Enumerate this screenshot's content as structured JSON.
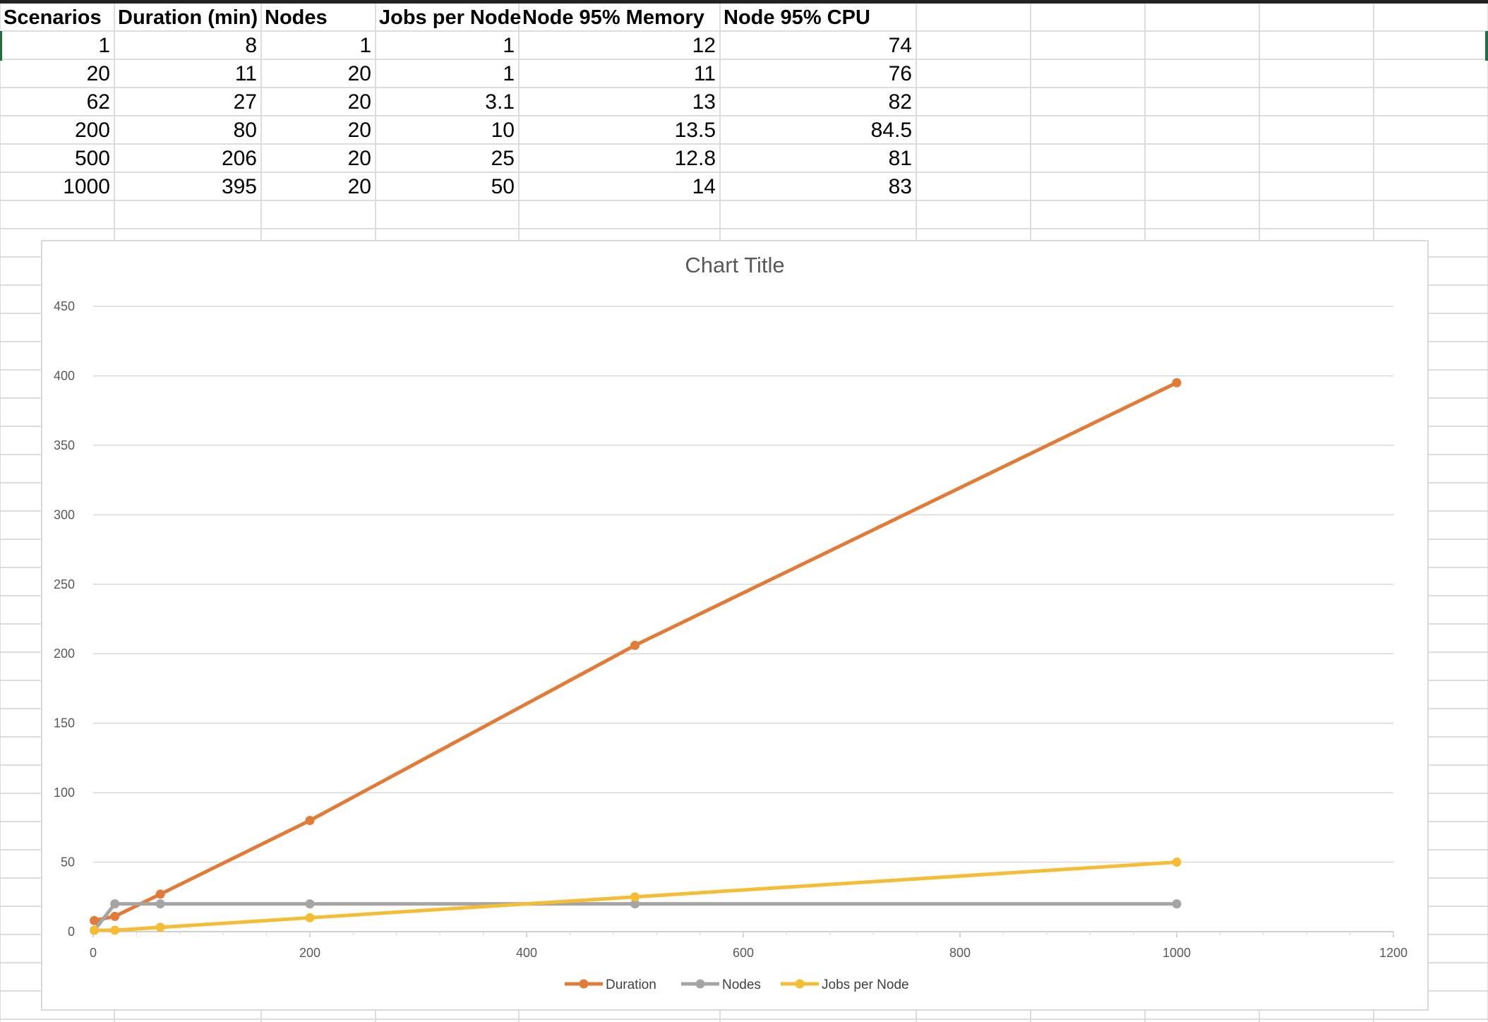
{
  "table": {
    "headers": [
      "Scenarios",
      "Duration (min)",
      "Nodes",
      "Jobs per Node",
      "Node 95% Memory",
      "Node 95% CPU"
    ],
    "rows": [
      [
        "1",
        "8",
        "1",
        "1",
        "12",
        "74"
      ],
      [
        "20",
        "11",
        "20",
        "1",
        "11",
        "76"
      ],
      [
        "62",
        "27",
        "20",
        "3.1",
        "13",
        "82"
      ],
      [
        "200",
        "80",
        "20",
        "10",
        "13.5",
        "84.5"
      ],
      [
        "500",
        "206",
        "20",
        "25",
        "12.8",
        "81"
      ],
      [
        "1000",
        "395",
        "20",
        "50",
        "14",
        "83"
      ]
    ]
  },
  "chart_data": {
    "type": "line",
    "title": "Chart Title",
    "xlabel": "",
    "ylabel": "",
    "x": [
      1,
      20,
      62,
      200,
      500,
      1000
    ],
    "xlim": [
      0,
      1200
    ],
    "ylim": [
      0,
      450
    ],
    "xticks": [
      0,
      200,
      400,
      600,
      800,
      1000,
      1200
    ],
    "yticks": [
      0,
      50,
      100,
      150,
      200,
      250,
      300,
      350,
      400,
      450
    ],
    "grid": true,
    "legend_position": "bottom",
    "series": [
      {
        "name": "Duration",
        "color": "#e07b39",
        "values": [
          8,
          11,
          27,
          80,
          206,
          395
        ]
      },
      {
        "name": "Nodes",
        "color": "#a5a5a5",
        "values": [
          1,
          20,
          20,
          20,
          20,
          20
        ]
      },
      {
        "name": "Jobs per Node",
        "color": "#f5bd36",
        "values": [
          1,
          1,
          3.1,
          10,
          25,
          50
        ]
      }
    ]
  }
}
